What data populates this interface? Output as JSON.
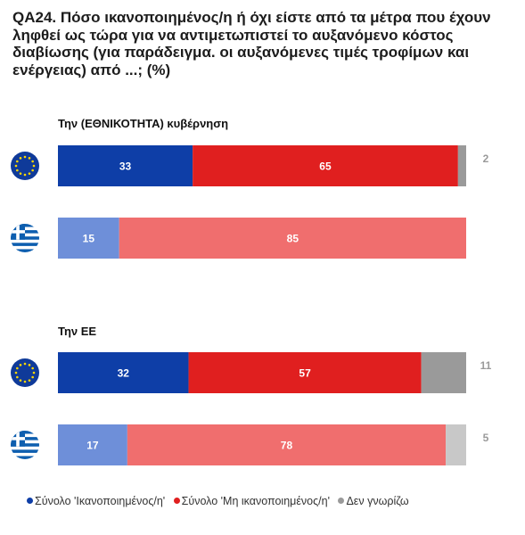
{
  "title": "QA24. Πόσο ικανοποιημένος/η ή όχι είστε από τα μέτρα που έχουν ληφθεί ως τώρα για να αντιμετωπιστεί το αυξανόμενο κόστος διαβίωσης (για παράδειγμα. οι αυξανόμενες τιμές τροφίμων και ενέργειας) από ...; (%)",
  "colors": {
    "eu_satisfied": "#0e3ea7",
    "eu_not_satisfied": "#e01f1f",
    "eu_dk": "#9a9a9a",
    "gr_satisfied": "#6e8fd9",
    "gr_not_satisfied": "#f06e6e",
    "gr_dk": "#c8c8c8",
    "outside_label": "#9a9a9a",
    "eu_flag": "#0f3a99",
    "eu_star": "#ffd800",
    "gr_flag": "#0d5eaf"
  },
  "chart_data": {
    "type": "bar",
    "orientation": "horizontal",
    "stacked": true,
    "scale_max": 100,
    "groups": [
      {
        "label": "Την (ΕΘΝΙΚΟΤΗΤΑ) κυβέρνηση",
        "rows": [
          {
            "entity": "eu-flag",
            "values": [
              33,
              65,
              2
            ],
            "labels": [
              "33",
              "65",
              "2"
            ]
          },
          {
            "entity": "greece-flag",
            "values": [
              15,
              85,
              0
            ],
            "labels": [
              "15",
              "85",
              ""
            ]
          }
        ]
      },
      {
        "label": "Την ΕΕ",
        "rows": [
          {
            "entity": "eu-flag",
            "values": [
              32,
              57,
              11
            ],
            "labels": [
              "32",
              "57",
              "11"
            ]
          },
          {
            "entity": "greece-flag",
            "values": [
              17,
              78,
              5
            ],
            "labels": [
              "17",
              "78",
              "5"
            ]
          }
        ]
      }
    ],
    "series": [
      {
        "name": "Σύνολο 'Ικανοποιημένος/η'"
      },
      {
        "name": "Σύνολο 'Μη ικανοποιημένος/η'"
      },
      {
        "name": "Δεν γνωρίζω"
      }
    ],
    "legend_position": "bottom"
  }
}
